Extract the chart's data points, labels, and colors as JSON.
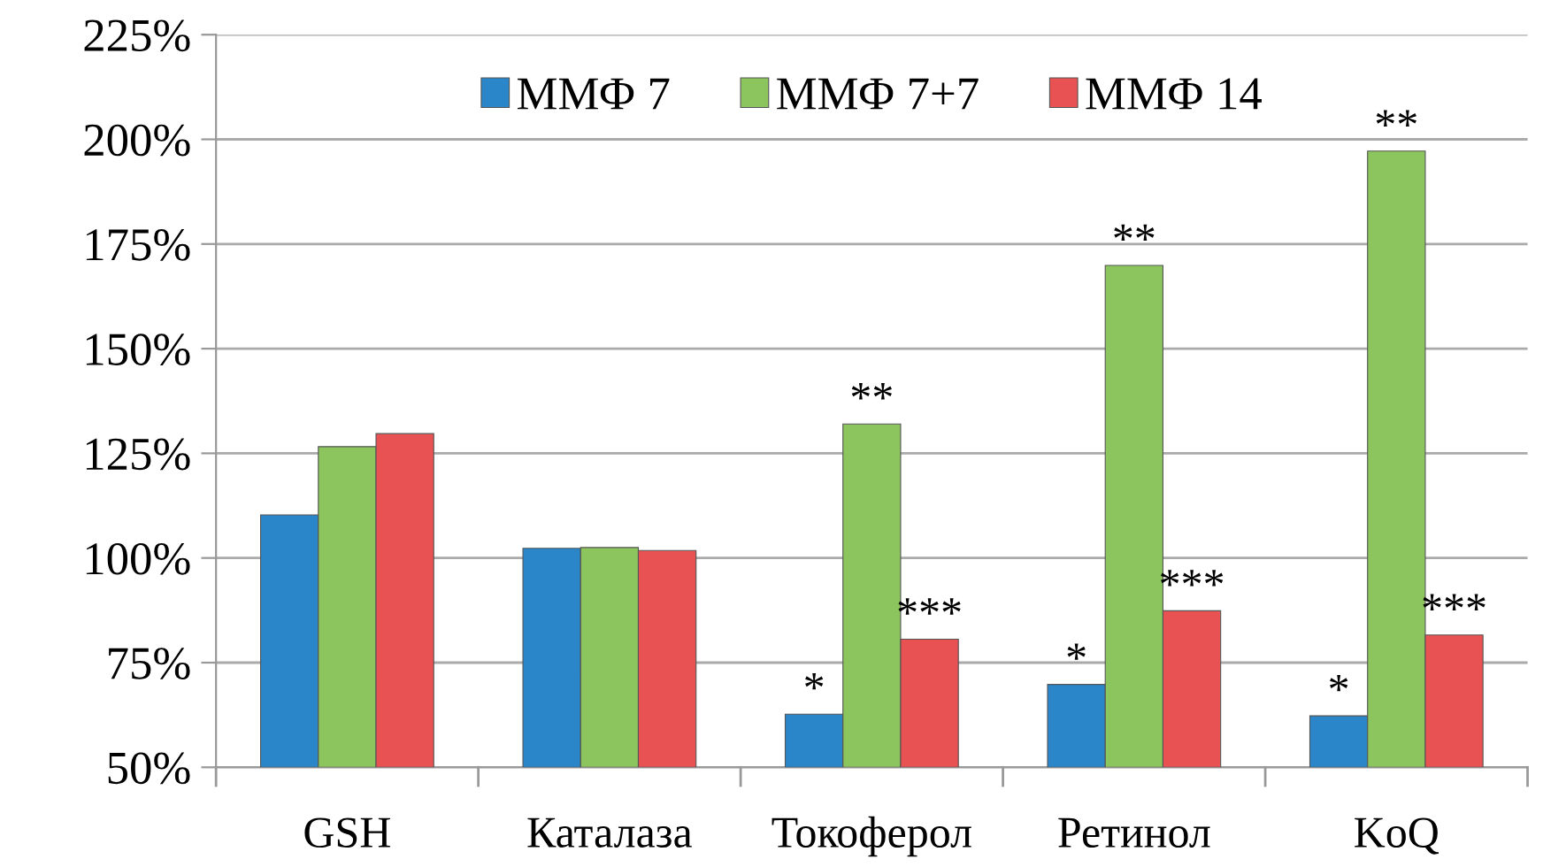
{
  "chart_data": {
    "type": "bar",
    "categories": [
      "GSH",
      "Каталаза",
      "Токоферол",
      "Ретинол",
      "KoQ"
    ],
    "series": [
      {
        "name": "ММФ 7",
        "color": "#2a86c8",
        "values": [
          110.3,
          102.3,
          62.7,
          69.8,
          62.3
        ],
        "value_labels": [
          null,
          null,
          "*",
          "*",
          "*"
        ]
      },
      {
        "name": "ММФ 7+7",
        "color": "#8cc45e",
        "values": [
          126.6,
          102.5,
          132,
          169.9,
          197.2
        ],
        "value_labels": [
          null,
          null,
          "**",
          "**",
          "**"
        ]
      },
      {
        "name": "ММФ 14",
        "color": "#e85252",
        "values": [
          129.7,
          101.8,
          80.6,
          87.4,
          81.6
        ],
        "value_labels": [
          null,
          null,
          "***",
          "***",
          "***"
        ]
      }
    ],
    "ylim": [
      50,
      225
    ],
    "yticks": [
      {
        "value": 50,
        "label": "50%"
      },
      {
        "value": 75,
        "label": "75%"
      },
      {
        "value": 100,
        "label": "100%"
      },
      {
        "value": 125,
        "label": "125%"
      },
      {
        "value": 150,
        "label": "150%"
      },
      {
        "value": 175,
        "label": "175%"
      },
      {
        "value": 200,
        "label": "200%"
      },
      {
        "value": 225,
        "label": "225%"
      }
    ],
    "grid": "y",
    "legend": "top"
  }
}
